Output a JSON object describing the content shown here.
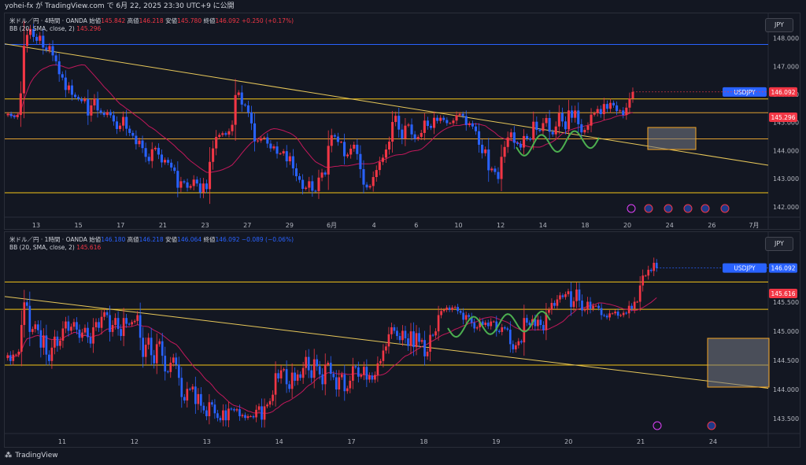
{
  "header": {
    "text": "yohei-fx が TradingView.com で 6月 22, 2025 23:30 UTC+9 に公開"
  },
  "footer": {
    "brand": "TradingView",
    "logo": "tv-logo-icon"
  },
  "colors": {
    "up": "#f23645",
    "down": "#2962ff",
    "bb": "#c2185b",
    "bbMid": "#b71c1c",
    "support": "#f5c518",
    "trend": "#e8c85a",
    "blueLine": "#2962ff",
    "green": "#4caf50",
    "zone": "#787b86"
  },
  "chart_data": [
    {
      "type": "candlestick",
      "legend": {
        "symbol": "米ドル／円 · 4時間 · OANDA",
        "open_label": "始値",
        "open": "145.842",
        "high_label": "高値",
        "high": "146.218",
        "low_label": "安値",
        "low": "145.780",
        "close_label": "終値",
        "close": "146.092",
        "change": "+0.250 (+0.17%)",
        "bb_label": "BB (20, SMA, close, 2)",
        "bb_value": "145.296"
      },
      "currency": "JPY",
      "price_badge": {
        "label": "USDJPY",
        "value": "146.092"
      },
      "bb_badge": "145.296",
      "ylim": [
        141.8,
        148.55
      ],
      "y_ticks": [
        "148.000",
        "147.000",
        "146.000",
        "145.000",
        "144.000",
        "143.000",
        "142.000"
      ],
      "x_ticks": [
        "13",
        "15",
        "17",
        "21",
        "23",
        "27",
        "29",
        "6月",
        "4",
        "6",
        "10",
        "12",
        "14",
        "18",
        "20",
        "24",
        "26",
        "7月"
      ],
      "horizontal_lines": [
        147.78,
        145.84,
        145.35,
        144.42,
        142.5
      ],
      "trendline": {
        "from": 147.8,
        "to": 143.48
      },
      "closes": [
        145.31,
        145.23,
        145.19,
        145.27,
        146.04,
        147.73,
        148.12,
        148.33,
        148.05,
        147.91,
        148.09,
        147.67,
        147.58,
        147.72,
        147.39,
        147.18,
        146.72,
        146.6,
        146.16,
        146.32,
        145.99,
        145.91,
        145.84,
        145.76,
        145.84,
        145.25,
        145.61,
        145.85,
        145.43,
        145.35,
        145.27,
        145.37,
        145.26,
        145.04,
        144.77,
        144.89,
        145.2,
        144.78,
        144.63,
        144.53,
        144.23,
        144.36,
        144.09,
        143.78,
        143.63,
        144.05,
        144.1,
        143.86,
        143.58,
        143.67,
        143.57,
        143.4,
        143.28,
        142.68,
        142.91,
        142.87,
        142.68,
        142.74,
        142.97,
        142.83,
        142.51,
        142.83,
        142.63,
        143.6,
        144.08,
        144.49,
        144.56,
        144.62,
        144.57,
        144.69,
        144.92,
        145.98,
        146.07,
        145.64,
        145.61,
        145.36,
        144.97,
        144.33,
        144.36,
        144.44,
        144.47,
        144.25,
        144.08,
        144.15,
        143.89,
        143.9,
        143.98,
        143.62,
        143.8,
        143.37,
        143.09,
        142.96,
        142.64,
        142.68,
        142.91,
        142.57,
        142.56,
        143.04,
        143.22,
        143.15,
        144.17,
        144.55,
        144.5,
        144.31,
        144.31,
        143.8,
        143.86,
        144.07,
        144.21,
        143.88,
        143.34,
        142.79,
        142.69,
        142.74,
        143.06,
        143.31,
        143.6,
        143.75,
        144.04,
        144.32,
        145.02,
        145.24,
        144.75,
        144.43,
        144.89,
        144.93,
        144.58,
        144.42,
        144.49,
        144.63,
        145.07,
        144.88,
        144.81,
        145.17,
        145.06,
        145.17,
        145.09,
        144.98,
        144.98,
        145.07,
        145.26,
        145.31,
        145.23,
        144.91,
        144.97,
        144.86,
        144.69,
        144.21,
        143.91,
        144.04,
        143.3,
        143.36,
        143.24,
        142.99,
        143.78,
        144.13,
        144.47,
        144.65,
        144.28,
        144.24,
        144.11,
        144.52,
        144.43,
        144.39,
        145.03,
        144.74,
        144.7,
        144.98,
        145.16,
        144.67,
        144.58,
        144.86,
        145.34,
        145.04,
        144.76,
        145.43,
        145.17,
        145.43,
        144.94,
        144.65,
        144.74,
        144.89,
        145.28,
        145.33,
        145.48,
        145.3,
        145.66,
        145.49,
        145.7,
        145.61,
        145.41,
        145.43,
        145.27,
        145.53,
        145.86,
        146.09
      ]
    },
    {
      "type": "candlestick",
      "legend": {
        "symbol": "米ドル／円 · 1時間 · OANDA",
        "open_label": "始値",
        "open": "146.180",
        "high_label": "高値",
        "high": "146.218",
        "low_label": "安値",
        "low": "146.064",
        "close_label": "終値",
        "close": "146.092",
        "change": "−0.089 (−0.06%)",
        "bb_label": "BB (20, SMA, close, 2)",
        "bb_value": "145.616"
      },
      "currency": "JPY",
      "price_badge": {
        "label": "USDJPY",
        "value": "146.092"
      },
      "bb_badge": "145.616",
      "ylim": [
        143.35,
        146.6
      ],
      "y_ticks": [
        "145.500",
        "145.000",
        "144.500",
        "144.000",
        "143.500"
      ],
      "x_ticks": [
        "11",
        "12",
        "13",
        "14",
        "17",
        "18",
        "19",
        "20",
        "21",
        "24"
      ],
      "horizontal_lines": [
        145.85,
        145.38,
        144.42
      ],
      "trendline": {
        "from": 145.6,
        "to": 144.02
      },
      "closes": [
        144.59,
        144.49,
        144.6,
        144.6,
        144.65,
        145.11,
        145.5,
        145.44,
        144.99,
        145.04,
        145.12,
        145.02,
        144.72,
        144.93,
        144.6,
        144.49,
        144.72,
        144.91,
        144.75,
        144.84,
        145.05,
        145.17,
        145.01,
        145.08,
        145.16,
        145.03,
        144.89,
        144.98,
        145.06,
        144.9,
        144.79,
        145.07,
        145.16,
        145.06,
        145.25,
        145.33,
        145.28,
        144.99,
        145.11,
        145.23,
        145.04,
        144.92,
        145.23,
        145.13,
        145.12,
        145.16,
        145.18,
        145.28,
        144.89,
        144.56,
        144.77,
        144.89,
        144.59,
        144.45,
        144.78,
        144.83,
        144.58,
        144.31,
        144.3,
        144.46,
        144.55,
        144.43,
        144.2,
        143.87,
        143.81,
        144.01,
        144.0,
        144.05,
        143.75,
        143.92,
        143.72,
        143.64,
        143.54,
        143.78,
        143.74,
        143.59,
        143.51,
        143.47,
        143.64,
        143.47,
        143.67,
        143.66,
        143.64,
        143.66,
        143.54,
        143.56,
        143.51,
        143.54,
        143.54,
        143.52,
        143.65,
        143.71,
        143.48,
        143.71,
        143.74,
        143.8,
        143.91,
        144.28,
        144.19,
        144.33,
        144.35,
        144.09,
        144.01,
        144.29,
        144.15,
        144.26,
        144.2,
        144.37,
        144.56,
        144.33,
        144.2,
        144.52,
        144.4,
        144.26,
        144.09,
        144.43,
        144.46,
        144.27,
        144.21,
        144.0,
        144.21,
        144.26,
        143.97,
        144.02,
        144.15,
        144.4,
        144.38,
        144.22,
        144.25,
        144.39,
        144.17,
        144.24,
        144.17,
        144.25,
        144.45,
        144.49,
        144.67,
        144.74,
        144.95,
        145.07,
        145.01,
        144.92,
        144.85,
        145.01,
        144.88,
        144.75,
        145.0,
        144.73,
        144.97,
        144.82,
        144.85,
        144.57,
        144.65,
        144.94,
        144.93,
        145.0,
        145.28,
        145.35,
        145.37,
        145.41,
        145.37,
        145.41,
        145.42,
        145.35,
        145.32,
        145.2,
        145.28,
        145.25,
        145.15,
        145.05,
        145.07,
        145.17,
        145.11,
        145.15,
        145.09,
        145.17,
        145.17,
        145.01,
        144.99,
        145.07,
        145.05,
        145.03,
        144.78,
        144.69,
        144.76,
        144.83,
        144.81,
        145.23,
        145.15,
        145.11,
        145.21,
        145.09,
        145.2,
        145.11,
        145.02,
        145.32,
        145.37,
        145.49,
        145.44,
        145.55,
        145.62,
        145.59,
        145.64,
        145.69,
        145.42,
        145.52,
        145.72,
        145.53,
        145.36,
        145.38,
        145.51,
        145.39,
        145.44,
        145.44,
        145.4,
        145.28,
        145.27,
        145.24,
        145.31,
        145.31,
        145.34,
        145.27,
        145.28,
        145.32,
        145.31,
        145.44,
        145.39,
        145.51,
        145.51,
        145.79,
        145.96,
        145.96,
        146.06,
        146.04,
        146.18,
        146.09
      ]
    }
  ]
}
